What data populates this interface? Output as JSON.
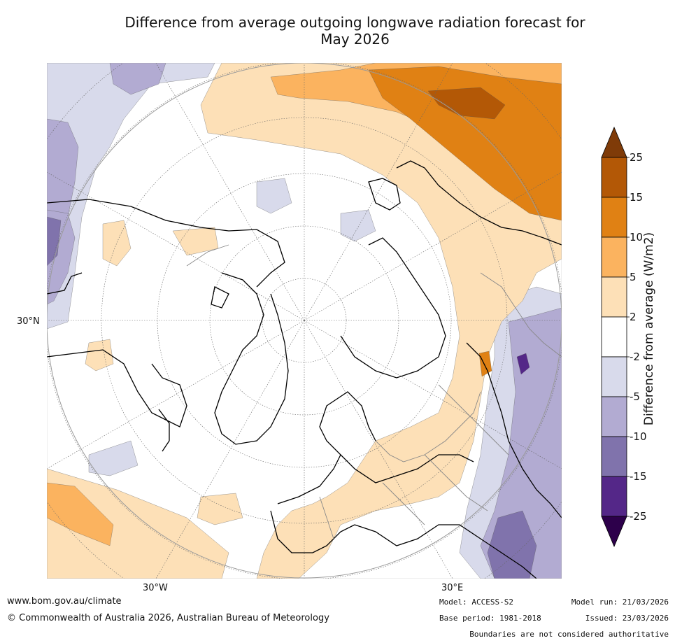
{
  "title_line1": "Difference from average outgoing longwave radiation forecast for",
  "title_line2": "May 2026",
  "map": {
    "label_lat": "30°N",
    "label_lon_w": "30°W",
    "label_lon_e": "30°E",
    "projection": "north polar stereographic",
    "colors": {
      "p2_5": "#fde0b7",
      "p5_10": "#fbb35f",
      "p10_15": "#e08114",
      "p15_25": "#b35806",
      "p25": "#7f3b08",
      "n2_5": "#d8daeb",
      "n5_10": "#b2abd2",
      "n10_15": "#8073ac",
      "n15_25": "#542788",
      "n25": "#2d004b"
    }
  },
  "colorbar": {
    "label": "Difference from average (W/m2)",
    "ticks": [
      "25",
      "15",
      "10",
      "5",
      "2",
      "-2",
      "-5",
      "-10",
      "-15",
      "-25"
    ],
    "colors": [
      "#7f3b08",
      "#b35806",
      "#e08114",
      "#fbb35f",
      "#fde0b7",
      "#ffffff",
      "#d8daeb",
      "#b2abd2",
      "#8073ac",
      "#542788",
      "#2d004b"
    ]
  },
  "footer": {
    "website": "www.bom.gov.au/climate",
    "copyright": "© Commonwealth of Australia 2026, Australian Bureau of Meteorology",
    "model": "Model: ACCESS-S2",
    "model_run": "Model run: 21/03/2026",
    "base_period": "Base period: 1981-2018",
    "issued": "Issued: 23/03/2026",
    "disclaimer": "Boundaries are not considered authoritative"
  }
}
